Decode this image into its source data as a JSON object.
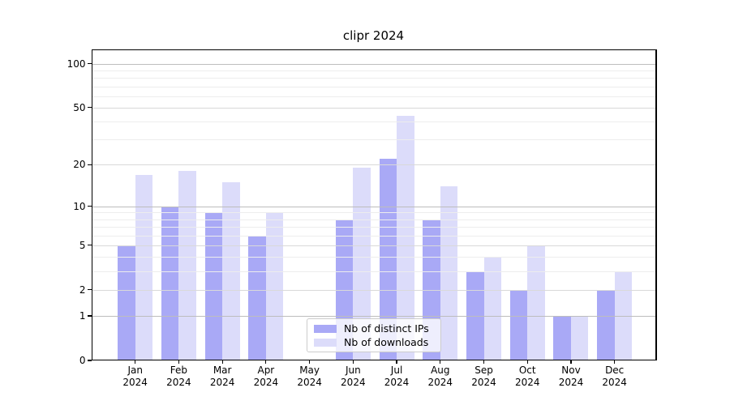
{
  "chart_data": {
    "type": "bar",
    "title": "clipr 2024",
    "categories": [
      "Jan",
      "Feb",
      "Mar",
      "Apr",
      "May",
      "Jun",
      "Jul",
      "Aug",
      "Sep",
      "Oct",
      "Nov",
      "Dec"
    ],
    "year_line": "2024",
    "series": [
      {
        "name": "Nb of distinct IPs",
        "color": "#a9a9f6",
        "values": [
          5,
          10,
          9,
          6,
          0,
          8,
          22,
          8,
          3,
          2,
          1,
          2
        ]
      },
      {
        "name": "Nb of downloads",
        "color": "#dcdcfa",
        "values": [
          17,
          18,
          15,
          9,
          0,
          19,
          44,
          14,
          4,
          5,
          1,
          3
        ]
      }
    ],
    "yscale": "log1p",
    "y_ticks": [
      0,
      1,
      2,
      5,
      10,
      20,
      50,
      100
    ],
    "y_minor_ticks": [
      3,
      4,
      6,
      7,
      8,
      9,
      30,
      40,
      60,
      70,
      80,
      90
    ],
    "ylim": [
      0,
      125
    ],
    "grid": "both",
    "legend_position": "lower center inside",
    "grid_colors": {
      "decade": "#bdbdbd",
      "labeled": "#d9d9d9",
      "minor": "#ededed"
    }
  }
}
